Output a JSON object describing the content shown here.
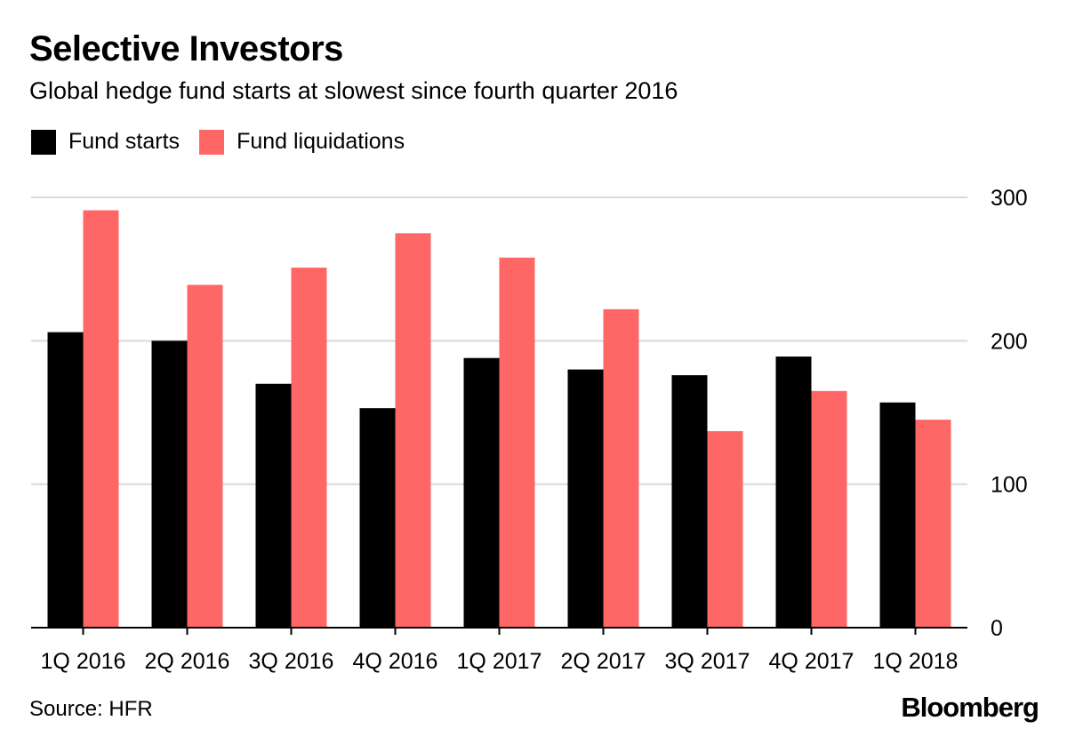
{
  "title": "Selective Investors",
  "subtitle": "Global hedge fund starts at slowest since fourth quarter 2016",
  "source": "Source: HFR",
  "brand": "Bloomberg",
  "chart_data": {
    "type": "bar",
    "categories": [
      "1Q 2016",
      "2Q 2016",
      "3Q 2016",
      "4Q 2016",
      "1Q 2017",
      "2Q 2017",
      "3Q 2017",
      "4Q 2017",
      "1Q 2018"
    ],
    "series": [
      {
        "name": "Fund starts",
        "color": "#000000",
        "values": [
          206,
          200,
          170,
          153,
          188,
          180,
          176,
          189,
          157
        ]
      },
      {
        "name": "Fund liquidations",
        "color": "#ff6666",
        "values": [
          291,
          239,
          251,
          275,
          258,
          222,
          137,
          165,
          145
        ]
      }
    ],
    "y_ticks": [
      0,
      100,
      200,
      300
    ],
    "ylim": [
      0,
      300
    ],
    "grid": true,
    "legend_position": "top-left",
    "y_axis_side": "right"
  }
}
